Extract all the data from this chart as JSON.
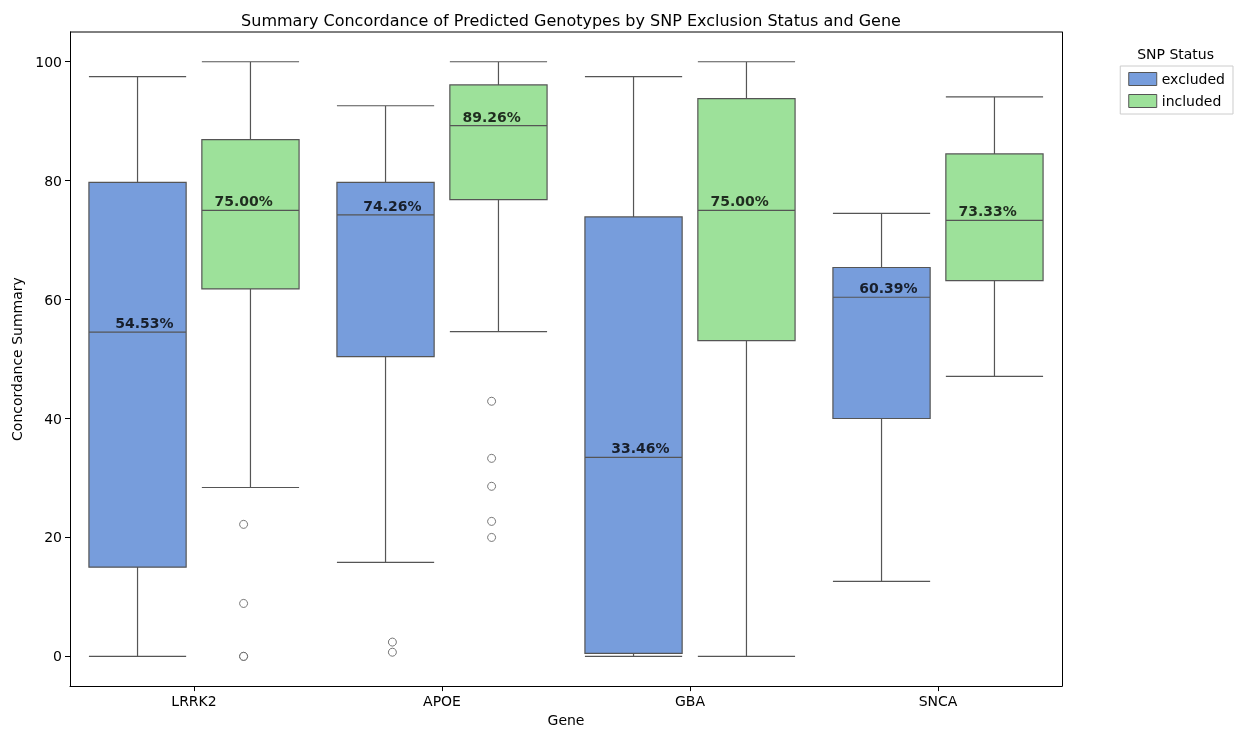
{
  "chart_data": {
    "type": "box",
    "title": "Summary Concordance of Predicted Genotypes by SNP Exclusion Status and Gene",
    "xlabel": "Gene",
    "ylabel": "Concordance Summary",
    "legend_title": "SNP Status",
    "categories": [
      "LRRK2",
      "APOE",
      "GBA",
      "SNCA"
    ],
    "series": [
      {
        "name": "excluded",
        "color": "#779ddc",
        "boxes": [
          {
            "low": 0,
            "q1": 15.0,
            "median": 54.53,
            "q3": 79.7,
            "high": 97.5
          },
          {
            "low": 15.8,
            "q1": 50.4,
            "median": 74.26,
            "q3": 79.7,
            "high": 92.6,
            "outliers": [
              2.4,
              0.7
            ]
          },
          {
            "low": 0,
            "q1": 0.5,
            "median": 33.46,
            "q3": 73.9,
            "high": 97.5
          },
          {
            "low": 12.6,
            "q1": 40.0,
            "median": 60.39,
            "q3": 65.4,
            "high": 74.5
          }
        ],
        "value_labels": [
          "54.53%",
          "74.26%",
          "33.46%",
          "60.39%"
        ]
      },
      {
        "name": "included",
        "color": "#9de19a",
        "boxes": [
          {
            "low": 28.4,
            "q1": 61.8,
            "median": 75.0,
            "q3": 86.9,
            "high": 100,
            "outliers": [
              22.2,
              8.9,
              0,
              0
            ]
          },
          {
            "low": 54.6,
            "q1": 76.8,
            "median": 89.26,
            "q3": 96.1,
            "high": 100,
            "outliers": [
              42.9,
              33.3,
              28.6,
              22.7,
              20.0
            ]
          },
          {
            "low": 0,
            "q1": 53.1,
            "median": 75.0,
            "q3": 93.8,
            "high": 100
          },
          {
            "low": 47.1,
            "q1": 63.2,
            "median": 73.33,
            "q3": 84.5,
            "high": 94.1
          }
        ],
        "value_labels": [
          "75.00%",
          "89.26%",
          "75.00%",
          "73.33%"
        ]
      }
    ],
    "ylim": [
      -5,
      105
    ],
    "yticks": [
      0,
      20,
      40,
      60,
      80,
      100
    ],
    "grid": false,
    "legend": "top right"
  }
}
